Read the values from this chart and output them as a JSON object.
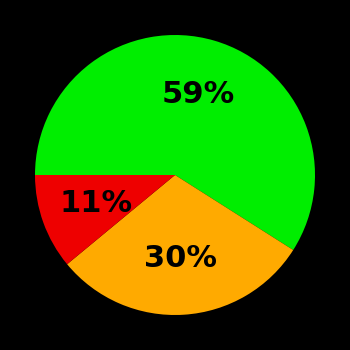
{
  "slices": [
    59,
    30,
    11
  ],
  "colors": [
    "#00ee00",
    "#ffaa00",
    "#ee0000"
  ],
  "labels": [
    "59%",
    "30%",
    "11%"
  ],
  "background_color": "#000000",
  "label_fontsize": 22,
  "label_fontweight": "bold",
  "startangle": 180,
  "counterclock": false,
  "figsize": [
    3.5,
    3.5
  ],
  "dpi": 100
}
